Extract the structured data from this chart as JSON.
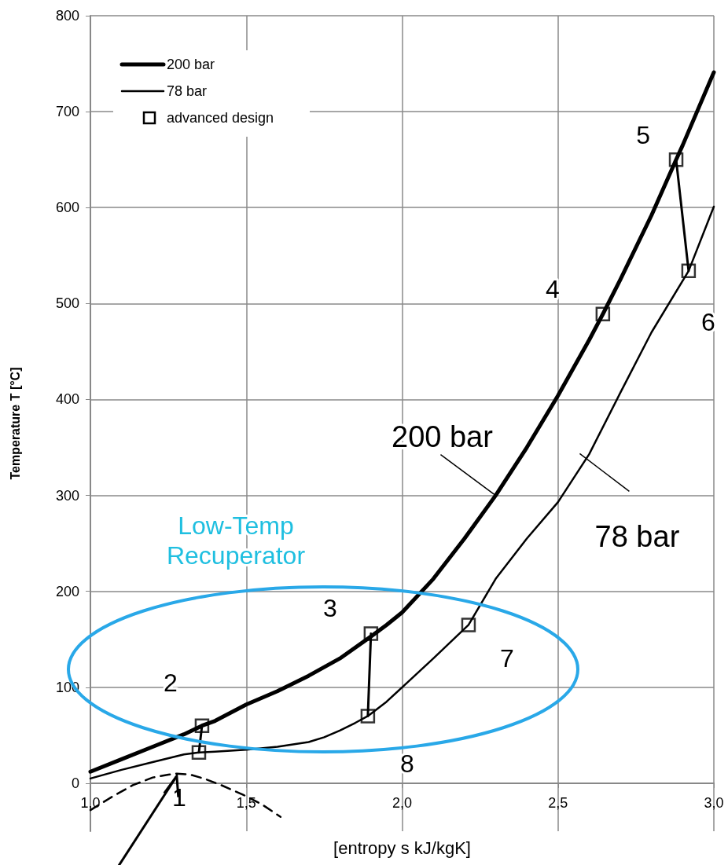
{
  "chart_data": {
    "type": "line",
    "xlabel": "[entropy s kJ/kgK]",
    "ylabel": "Temperature T [°C]",
    "xlim": [
      1.0,
      3.0
    ],
    "xticks": [
      {
        "value": 1.0,
        "label": "1,0"
      },
      {
        "value": 1.5,
        "label": "1,5"
      },
      {
        "value": 2.0,
        "label": "2,0"
      },
      {
        "value": 2.5,
        "label": "2,5"
      },
      {
        "value": 3.0,
        "label": "3,0"
      }
    ],
    "ylim": [
      -50,
      800
    ],
    "yticks": [
      0,
      100,
      200,
      300,
      400,
      500,
      600,
      700,
      800
    ],
    "grid": true,
    "legend": "top left",
    "series": [
      {
        "name": "200 bar",
        "color": "#000000",
        "marker": "none",
        "line_style": "solid",
        "x": [
          1.0,
          1.1,
          1.2,
          1.3,
          1.358,
          1.4,
          1.5,
          1.6,
          1.7,
          1.8,
          1.9,
          1.95,
          2.0,
          2.1,
          2.2,
          2.3,
          2.4,
          2.5,
          2.6,
          2.644,
          2.7,
          2.8,
          2.879,
          2.9,
          3.0
        ],
        "values": [
          12,
          25,
          38,
          51,
          60,
          65,
          82,
          96,
          112,
          130,
          153,
          165,
          178,
          213,
          255,
          300,
          350,
          404,
          462,
          489,
          525,
          592,
          650,
          665,
          741
        ]
      },
      {
        "name": "78 bar",
        "color": "#000000",
        "marker": "none",
        "line_style": "solid",
        "x": [
          1.0,
          1.1,
          1.2,
          1.3,
          1.348,
          1.4,
          1.5,
          1.6,
          1.7,
          1.75,
          1.8,
          1.85,
          1.89,
          1.95,
          2.0,
          2.1,
          2.213,
          2.3,
          2.4,
          2.5,
          2.6,
          2.7,
          2.8,
          2.919,
          3.0
        ],
        "values": [
          5,
          14,
          22,
          30,
          32,
          33,
          35,
          38,
          43,
          48,
          55,
          63,
          70,
          85,
          100,
          130,
          165,
          213,
          255,
          293,
          343,
          407,
          470,
          534,
          601
        ]
      },
      {
        "name": "advanced design",
        "type": "scatter",
        "color": "#000000",
        "marker": "square",
        "x": [
          1.348,
          1.358,
          1.9,
          2.644,
          2.879,
          2.919,
          2.213,
          1.89
        ],
        "values": [
          32,
          60,
          156,
          489,
          650,
          534,
          165,
          70
        ]
      },
      {
        "color": "#000000",
        "marker": "none",
        "line_style": "solid",
        "x": [
          1.348,
          1.358,
          null,
          1.9,
          1.89,
          null,
          2.879,
          2.919
        ],
        "values": [
          32,
          60,
          null,
          156,
          70,
          null,
          650,
          534
        ]
      },
      {
        "color": "#000000",
        "marker": "none",
        "line_style": "dashed",
        "x": [
          1.0,
          1.07,
          1.136,
          1.2,
          1.25,
          1.277,
          1.32,
          1.363,
          1.42,
          1.49,
          1.55,
          1.61
        ],
        "values": [
          -28,
          -14,
          -2,
          6,
          9,
          10,
          9,
          5,
          -2,
          -12,
          -22,
          -35
        ]
      }
    ],
    "annotations": [
      {
        "text": "1",
        "x": 1.277,
        "y": 10
      },
      {
        "text": "2",
        "x": 1.358,
        "y": 60
      },
      {
        "text": "3",
        "x": 1.9,
        "y": 156
      },
      {
        "text": "4",
        "x": 2.644,
        "y": 489
      },
      {
        "text": "5",
        "x": 2.879,
        "y": 650
      },
      {
        "text": "6",
        "x": 2.919,
        "y": 534
      },
      {
        "text": "7",
        "x": 2.213,
        "y": 165
      },
      {
        "text": "8",
        "x": 1.89,
        "y": 70
      },
      {
        "text": "200 bar",
        "x": 2.3,
        "y": 300
      },
      {
        "text": "78 bar",
        "x": 2.59,
        "y": 337
      },
      "Low-Temp\nRecuperator"
    ]
  }
}
